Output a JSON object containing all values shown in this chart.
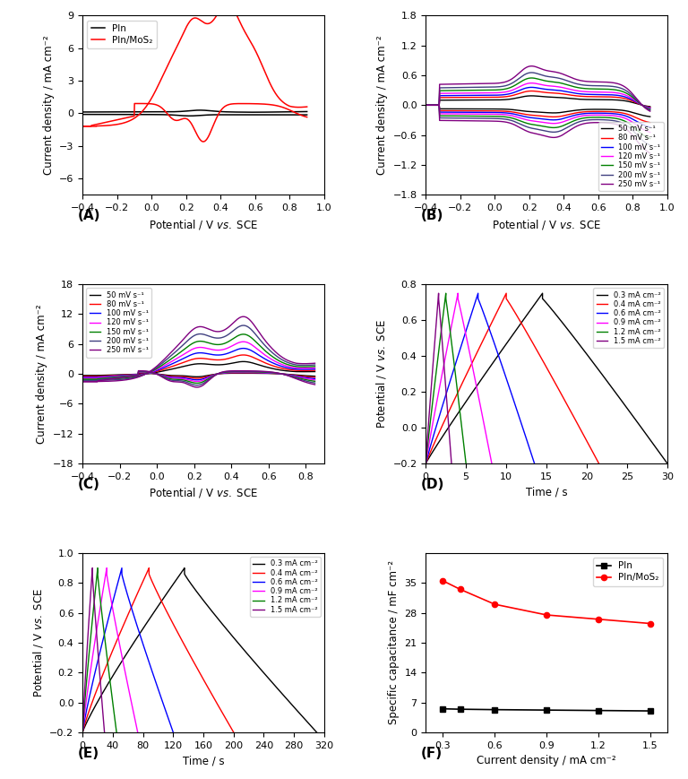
{
  "A": {
    "ylabel": "Current density / mA cm⁻²",
    "xlabel": "Potential / V νς. SCE",
    "ylim": [
      -7.5,
      9
    ],
    "xlim": [
      -0.4,
      1.0
    ],
    "xticks": [
      -0.4,
      -0.2,
      0.0,
      0.2,
      0.4,
      0.6,
      0.8,
      1.0
    ],
    "yticks": [
      -6,
      -3,
      0,
      3,
      6,
      9
    ],
    "legend": [
      "PIn",
      "PIn/MoS₂"
    ],
    "colors": [
      "black",
      "red"
    ]
  },
  "B": {
    "ylabel": "Current density / mA cm⁻²",
    "xlabel": "Potential / V νς. SCE",
    "ylim": [
      -1.8,
      1.8
    ],
    "xlim": [
      -0.4,
      1.0
    ],
    "xticks": [
      -0.4,
      -0.2,
      0.0,
      0.2,
      0.4,
      0.6,
      0.8,
      1.0
    ],
    "yticks": [
      -1.8,
      -1.2,
      -0.6,
      0.0,
      0.6,
      1.2,
      1.8
    ],
    "scan_rates": [
      "50 mV s⁻¹",
      "80 mV s⁻¹",
      "100 mV s⁻¹",
      "120 mV s⁻¹",
      "150 mV s⁻¹",
      "200 mV s⁻¹",
      "250 mV s⁻¹"
    ],
    "colors": [
      "black",
      "red",
      "blue",
      "magenta",
      "green",
      "#404080",
      "purple"
    ]
  },
  "C": {
    "ylabel": "Current density / mA cm⁻²",
    "xlabel": "Potential / V νς. SCE",
    "ylim": [
      -18,
      18
    ],
    "xlim": [
      -0.4,
      0.9
    ],
    "xticks": [
      -0.4,
      -0.2,
      0.0,
      0.2,
      0.4,
      0.6,
      0.8
    ],
    "yticks": [
      -18,
      -12,
      -6,
      0,
      6,
      12,
      18
    ],
    "scan_rates": [
      "50 mV s⁻¹",
      "80 mV s⁻¹",
      "100 mV s⁻¹",
      "120 mV s⁻¹",
      "150 mV s⁻¹",
      "200 mV s⁻¹",
      "250 mV s⁻¹"
    ],
    "colors": [
      "black",
      "red",
      "blue",
      "magenta",
      "green",
      "#404080",
      "purple"
    ]
  },
  "D": {
    "ylabel": "Potential / V νς. SCE",
    "xlabel": "Time / s",
    "ylim": [
      -0.2,
      0.8
    ],
    "xlim": [
      0,
      30
    ],
    "xticks": [
      0,
      5,
      10,
      15,
      20,
      25,
      30
    ],
    "yticks": [
      -0.2,
      0.0,
      0.2,
      0.4,
      0.6,
      0.8
    ],
    "current_densities": [
      "0.3 mA cm⁻²",
      "0.4 mA cm⁻²",
      "0.6 mA cm⁻²",
      "0.9 mA cm⁻²",
      "1.2 mA cm⁻²",
      "1.5 mA cm⁻²"
    ],
    "colors": [
      "black",
      "red",
      "blue",
      "magenta",
      "green",
      "purple"
    ],
    "charge_times": [
      14.5,
      10.0,
      6.5,
      4.0,
      2.5,
      1.6
    ],
    "discharge_times": [
      30.0,
      21.5,
      13.5,
      8.2,
      5.0,
      3.2
    ]
  },
  "E": {
    "ylabel": "Potential / V νς. SCE",
    "xlabel": "Time / s",
    "ylim": [
      -0.2,
      1.0
    ],
    "xlim": [
      0,
      320
    ],
    "xticks": [
      0,
      40,
      80,
      120,
      160,
      200,
      240,
      280,
      320
    ],
    "yticks": [
      -0.2,
      0.0,
      0.2,
      0.4,
      0.6,
      0.8,
      1.0
    ],
    "current_densities": [
      "0.3 mA cm⁻²",
      "0.4 mA cm⁻²",
      "0.6 mA cm⁻²",
      "0.9 mA cm⁻²",
      "1.2 mA cm⁻²",
      "1.5 mA cm⁻²"
    ],
    "colors": [
      "black",
      "red",
      "blue",
      "magenta",
      "green",
      "purple"
    ],
    "charge_times": [
      135,
      88,
      52,
      32,
      20,
      13
    ],
    "discharge_times": [
      310,
      200,
      120,
      73,
      45,
      29
    ]
  },
  "F": {
    "ylabel": "Specific capacitance / mF cm⁻²",
    "xlabel": "Current density / mA cm⁻²",
    "ylim": [
      0,
      42
    ],
    "xlim": [
      0.2,
      1.6
    ],
    "xticks": [
      0.3,
      0.6,
      0.9,
      1.2,
      1.5
    ],
    "yticks": [
      0,
      7,
      14,
      21,
      28,
      35
    ],
    "x_vals": [
      0.3,
      0.4,
      0.6,
      0.9,
      1.2,
      1.5
    ],
    "PIn_vals": [
      5.5,
      5.4,
      5.3,
      5.2,
      5.1,
      5.0
    ],
    "PInMoS2_vals": [
      35.5,
      33.5,
      30.0,
      27.5,
      26.5,
      25.5
    ],
    "legend": [
      "PIn",
      "PIn/MoS₂"
    ],
    "colors": [
      "black",
      "red"
    ]
  }
}
